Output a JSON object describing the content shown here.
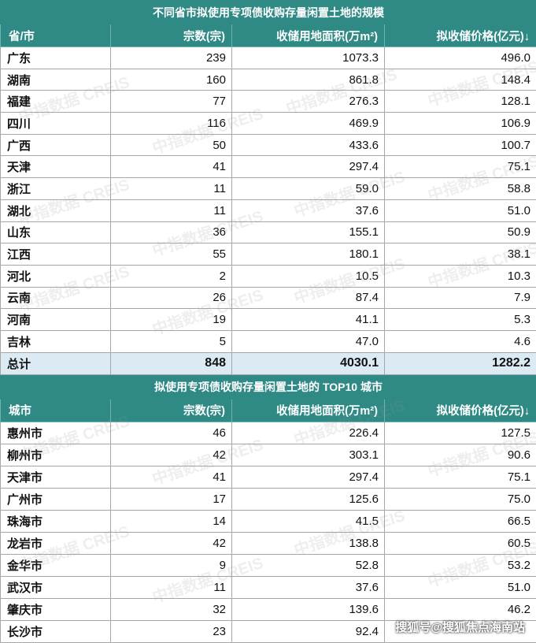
{
  "table1": {
    "title": "不同省市拟使用专项债收购存量闲置土地的规模",
    "headers": [
      "省/市",
      "宗数(宗)",
      "收储用地面积(万m²)",
      "拟收储价格(亿元)↓"
    ],
    "rows": [
      {
        "name": "广东",
        "count": "239",
        "area": "1073.3",
        "price": "496.0"
      },
      {
        "name": "湖南",
        "count": "160",
        "area": "861.8",
        "price": "148.4"
      },
      {
        "name": "福建",
        "count": "77",
        "area": "276.3",
        "price": "128.1"
      },
      {
        "name": "四川",
        "count": "116",
        "area": "469.9",
        "price": "106.9"
      },
      {
        "name": "广西",
        "count": "50",
        "area": "433.6",
        "price": "100.7"
      },
      {
        "name": "天津",
        "count": "41",
        "area": "297.4",
        "price": "75.1"
      },
      {
        "name": "浙江",
        "count": "11",
        "area": "59.0",
        "price": "58.8"
      },
      {
        "name": "湖北",
        "count": "11",
        "area": "37.6",
        "price": "51.0"
      },
      {
        "name": "山东",
        "count": "36",
        "area": "155.1",
        "price": "50.9"
      },
      {
        "name": "江西",
        "count": "55",
        "area": "180.1",
        "price": "38.1"
      },
      {
        "name": "河北",
        "count": "2",
        "area": "10.5",
        "price": "10.3"
      },
      {
        "name": "云南",
        "count": "26",
        "area": "87.4",
        "price": "7.9"
      },
      {
        "name": "河南",
        "count": "19",
        "area": "41.1",
        "price": "5.3"
      },
      {
        "name": "吉林",
        "count": "5",
        "area": "47.0",
        "price": "4.6"
      }
    ],
    "total": {
      "name": "总计",
      "count": "848",
      "area": "4030.1",
      "price": "1282.2"
    }
  },
  "table2": {
    "title": "拟使用专项债收购存量闲置土地的 TOP10 城市",
    "headers": [
      "城市",
      "宗数(宗)",
      "收储用地面积(万m²)",
      "拟收储价格(亿元)↓"
    ],
    "rows": [
      {
        "name": "惠州市",
        "count": "46",
        "area": "226.4",
        "price": "127.5"
      },
      {
        "name": "柳州市",
        "count": "42",
        "area": "303.1",
        "price": "90.6"
      },
      {
        "name": "天津市",
        "count": "41",
        "area": "297.4",
        "price": "75.1"
      },
      {
        "name": "广州市",
        "count": "17",
        "area": "125.6",
        "price": "75.0"
      },
      {
        "name": "珠海市",
        "count": "14",
        "area": "41.5",
        "price": "66.5"
      },
      {
        "name": "龙岩市",
        "count": "42",
        "area": "138.8",
        "price": "60.5"
      },
      {
        "name": "金华市",
        "count": "9",
        "area": "52.8",
        "price": "53.2"
      },
      {
        "name": "武汉市",
        "count": "11",
        "area": "37.6",
        "price": "51.0"
      },
      {
        "name": "肇庆市",
        "count": "32",
        "area": "139.6",
        "price": "46.2"
      },
      {
        "name": "长沙市",
        "count": "23",
        "area": "92.4",
        "price": ""
      }
    ]
  },
  "watermark": {
    "text": "中指数据 CREIS"
  },
  "footer": {
    "source": "搜狐号@搜狐焦点海南站"
  },
  "colors": {
    "header": "#2f8a86",
    "total_bg": "#dcebf3",
    "border": "#a6a6a6"
  }
}
